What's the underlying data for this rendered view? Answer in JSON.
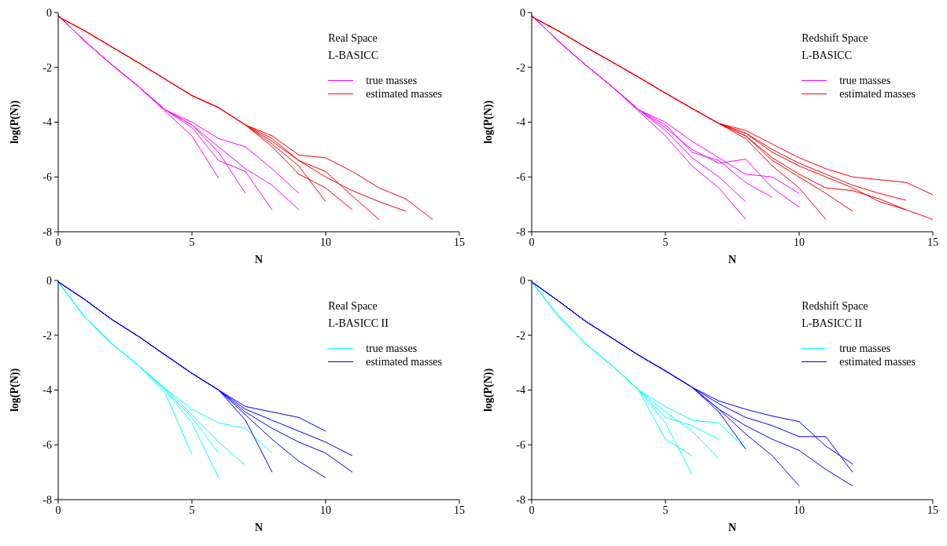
{
  "chart_data": [
    {
      "type": "line",
      "xlabel": "N",
      "ylabel": "log(P(N))",
      "xlim": [
        0,
        15
      ],
      "xticks": [
        0,
        5,
        10,
        15
      ],
      "ylim": [
        -8,
        0
      ],
      "yticks": [
        -8,
        -6,
        -4,
        -2,
        0
      ],
      "legend": "top right",
      "marker": "none",
      "annotations": [
        "Real Space",
        "L-BASICC"
      ],
      "x": [
        0,
        1,
        2,
        3,
        4,
        5,
        6,
        7,
        8,
        9,
        10,
        11,
        12,
        13,
        14
      ],
      "series": [
        {
          "name": "true masses",
          "color": "#ff00ff",
          "values": [
            -0.1,
            -1.05,
            -1.9,
            -2.7,
            -3.55,
            -4.0,
            -4.6,
            -4.9,
            -5.7,
            -6.6,
            null,
            null,
            null,
            null,
            null
          ]
        },
        {
          "color": "#ff00ff",
          "values": [
            -0.1,
            -1.05,
            -1.9,
            -2.7,
            -3.6,
            -4.5,
            -6.05,
            null,
            null,
            null,
            null,
            null,
            null,
            null,
            null
          ]
        },
        {
          "color": "#ff00ff",
          "values": [
            -0.1,
            -1.05,
            -1.9,
            -2.7,
            -3.55,
            -4.1,
            -5.1,
            -6.6,
            null,
            null,
            null,
            null,
            null,
            null,
            null
          ]
        },
        {
          "color": "#ff00ff",
          "values": [
            -0.1,
            -1.05,
            -1.9,
            -2.7,
            -3.55,
            -4.2,
            -5.4,
            -5.8,
            -7.2,
            null,
            null,
            null,
            null,
            null,
            null
          ]
        },
        {
          "color": "#ff00ff",
          "values": [
            -0.1,
            -1.05,
            -1.9,
            -2.7,
            -3.55,
            -4.1,
            -4.9,
            -5.7,
            -6.3,
            -7.2,
            null,
            null,
            null,
            null,
            null
          ]
        },
        {
          "name": "estimated masses",
          "color": "#ff0000",
          "values": [
            -0.15,
            -0.67,
            -1.25,
            -1.83,
            -2.43,
            -3.03,
            -3.47,
            -4.1,
            -4.5,
            -5.2,
            -5.3,
            -5.8,
            -6.4,
            -6.8,
            -7.55
          ]
        },
        {
          "color": "#ff0000",
          "values": [
            -0.15,
            -0.67,
            -1.25,
            -1.83,
            -2.43,
            -3.03,
            -3.47,
            -4.1,
            -4.7,
            -5.4,
            -6.0,
            -6.5,
            -6.9,
            -7.25,
            null
          ]
        },
        {
          "color": "#ff0000",
          "values": [
            -0.15,
            -0.67,
            -1.25,
            -1.83,
            -2.43,
            -3.03,
            -3.47,
            -4.1,
            -4.8,
            -5.6,
            -6.9,
            null,
            null,
            null,
            null
          ]
        },
        {
          "color": "#ff0000",
          "values": [
            -0.15,
            -0.67,
            -1.25,
            -1.83,
            -2.43,
            -3.03,
            -3.47,
            -4.1,
            -4.6,
            -5.4,
            -5.8,
            -6.7,
            -7.55,
            null,
            null
          ]
        },
        {
          "color": "#ff0000",
          "values": [
            -0.15,
            -0.67,
            -1.25,
            -1.83,
            -2.43,
            -3.03,
            -3.47,
            -4.1,
            -4.9,
            -5.9,
            -6.4,
            -7.2,
            null,
            null,
            null
          ]
        }
      ]
    },
    {
      "type": "line",
      "xlabel": "N",
      "ylabel": "log(P(N))",
      "xlim": [
        0,
        15
      ],
      "xticks": [
        0,
        5,
        10,
        15
      ],
      "ylim": [
        -8,
        0
      ],
      "yticks": [
        -8,
        -6,
        -4,
        -2,
        0
      ],
      "legend": "top right",
      "marker": "none",
      "annotations": [
        "Redshift Space",
        "L-BASICC"
      ],
      "x": [
        0,
        1,
        2,
        3,
        4,
        5,
        6,
        7,
        8,
        9,
        10,
        11,
        12,
        13,
        14,
        15
      ],
      "series": [
        {
          "name": "true masses",
          "color": "#ff00ff",
          "values": [
            -0.1,
            -1.05,
            -1.9,
            -2.7,
            -3.55,
            -4.0,
            -4.7,
            -5.3,
            -5.9,
            -6.0,
            -6.6,
            null,
            null,
            null,
            null,
            null
          ]
        },
        {
          "color": "#ff00ff",
          "values": [
            -0.1,
            -1.05,
            -1.9,
            -2.7,
            -3.6,
            -4.5,
            -5.6,
            -6.4,
            -7.55,
            null,
            null,
            null,
            null,
            null,
            null,
            null
          ]
        },
        {
          "color": "#ff00ff",
          "values": [
            -0.1,
            -1.05,
            -1.9,
            -2.7,
            -3.55,
            -4.2,
            -5.0,
            -5.5,
            -5.35,
            -6.4,
            -7.1,
            null,
            null,
            null,
            null,
            null
          ]
        },
        {
          "color": "#ff00ff",
          "values": [
            -0.1,
            -1.05,
            -1.9,
            -2.7,
            -3.55,
            -4.3,
            -5.3,
            -6.0,
            -6.9,
            null,
            null,
            null,
            null,
            null,
            null,
            null
          ]
        },
        {
          "color": "#ff00ff",
          "values": [
            -0.1,
            -1.05,
            -1.9,
            -2.7,
            -3.55,
            -4.1,
            -5.1,
            -5.4,
            -6.2,
            -6.75,
            null,
            null,
            null,
            null,
            null,
            null
          ]
        },
        {
          "name": "estimated masses",
          "color": "#ff0000",
          "values": [
            -0.15,
            -0.67,
            -1.25,
            -1.8,
            -2.36,
            -2.94,
            -3.5,
            -4.05,
            -4.3,
            -4.8,
            -5.3,
            -5.7,
            -6.0,
            -6.1,
            -6.2,
            -6.65
          ]
        },
        {
          "color": "#ff0000",
          "values": [
            -0.15,
            -0.67,
            -1.25,
            -1.8,
            -2.36,
            -2.94,
            -3.5,
            -4.05,
            -4.4,
            -5.0,
            -5.5,
            -5.9,
            -6.3,
            -6.6,
            -6.85,
            null
          ]
        },
        {
          "color": "#ff0000",
          "values": [
            -0.15,
            -0.67,
            -1.25,
            -1.8,
            -2.36,
            -2.94,
            -3.5,
            -4.05,
            -4.5,
            -5.3,
            -5.9,
            -6.4,
            -6.5,
            -6.8,
            -7.2,
            null
          ]
        },
        {
          "color": "#ff0000",
          "values": [
            -0.15,
            -0.67,
            -1.25,
            -1.8,
            -2.36,
            -2.94,
            -3.5,
            -4.05,
            -4.6,
            -5.6,
            -6.4,
            -7.55,
            null,
            null,
            null,
            null
          ]
        },
        {
          "color": "#ff0000",
          "values": [
            -0.15,
            -0.67,
            -1.25,
            -1.8,
            -2.36,
            -2.94,
            -3.5,
            -4.05,
            -4.5,
            -5.4,
            -6.0,
            -6.6,
            -7.25,
            null,
            null,
            null
          ]
        },
        {
          "color": "#ff0000",
          "values": [
            -0.15,
            -0.67,
            -1.25,
            -1.8,
            -2.36,
            -2.94,
            -3.5,
            -4.05,
            -4.4,
            -5.1,
            -5.6,
            -6.0,
            -6.4,
            -6.9,
            -7.2,
            -7.55
          ]
        }
      ]
    },
    {
      "type": "line",
      "xlabel": "N",
      "ylabel": "log(P(N))",
      "xlim": [
        0,
        15
      ],
      "xticks": [
        0,
        5,
        10,
        15
      ],
      "ylim": [
        -8,
        0
      ],
      "yticks": [
        -8,
        -6,
        -4,
        -2,
        0
      ],
      "legend": "top right",
      "marker": "none",
      "annotations": [
        "Real Space",
        "L-BASICC II"
      ],
      "x": [
        0,
        1,
        2,
        3,
        4,
        5,
        6,
        7,
        8,
        9,
        10,
        11
      ],
      "series": [
        {
          "name": "true masses",
          "color": "#00ffff",
          "values": [
            -0.05,
            -1.35,
            -2.3,
            -3.1,
            -3.95,
            -4.7,
            -5.2,
            -5.4,
            -6.3,
            null,
            null,
            null
          ]
        },
        {
          "color": "#00ffff",
          "values": [
            -0.05,
            -1.35,
            -2.3,
            -3.1,
            -4.1,
            -6.35,
            null,
            null,
            null,
            null,
            null,
            null
          ]
        },
        {
          "color": "#00ffff",
          "values": [
            -0.05,
            -1.35,
            -2.3,
            -3.1,
            -3.95,
            -4.9,
            -5.9,
            -6.75,
            null,
            null,
            null,
            null
          ]
        },
        {
          "color": "#00ffff",
          "values": [
            -0.05,
            -1.35,
            -2.3,
            -3.1,
            -4.0,
            -5.2,
            -7.2,
            null,
            null,
            null,
            null,
            null
          ]
        },
        {
          "color": "#00ffff",
          "values": [
            -0.05,
            -1.35,
            -2.3,
            -3.1,
            -4.0,
            -5.0,
            -6.3,
            null,
            null,
            null,
            null,
            null
          ]
        },
        {
          "name": "estimated masses",
          "color": "#0000ff",
          "values": [
            -0.05,
            -0.7,
            -1.42,
            -2.04,
            -2.72,
            -3.39,
            -4.0,
            -4.6,
            -4.8,
            -5.0,
            -5.5,
            null
          ]
        },
        {
          "color": "#0000ff",
          "values": [
            -0.05,
            -0.7,
            -1.42,
            -2.04,
            -2.72,
            -3.39,
            -4.0,
            -4.7,
            -5.1,
            -5.5,
            -5.9,
            -6.4
          ]
        },
        {
          "color": "#0000ff",
          "values": [
            -0.05,
            -0.7,
            -1.42,
            -2.04,
            -2.72,
            -3.39,
            -4.0,
            -4.8,
            -5.4,
            -5.9,
            -6.3,
            -7.0
          ]
        },
        {
          "color": "#0000ff",
          "values": [
            -0.05,
            -0.7,
            -1.42,
            -2.04,
            -2.72,
            -3.39,
            -4.0,
            -5.1,
            -7.0,
            null,
            null,
            null
          ]
        },
        {
          "color": "#0000ff",
          "values": [
            -0.05,
            -0.7,
            -1.42,
            -2.04,
            -2.72,
            -3.39,
            -4.0,
            -4.9,
            -5.8,
            -6.6,
            -7.2,
            null
          ]
        }
      ]
    },
    {
      "type": "line",
      "xlabel": "N",
      "ylabel": "log(P(N))",
      "xlim": [
        0,
        15
      ],
      "xticks": [
        0,
        5,
        10,
        15
      ],
      "ylim": [
        -8,
        0
      ],
      "yticks": [
        -8,
        -6,
        -4,
        -2,
        0
      ],
      "legend": "top right",
      "marker": "none",
      "annotations": [
        "Redshift Space",
        "L-BASICC II"
      ],
      "x": [
        0,
        1,
        2,
        3,
        4,
        5,
        6,
        7,
        8,
        9,
        10,
        11,
        12
      ],
      "series": [
        {
          "name": "true masses",
          "color": "#00ffff",
          "values": [
            -0.05,
            -1.3,
            -2.3,
            -3.1,
            -4.0,
            -4.6,
            -5.1,
            -5.2,
            -6.15,
            null,
            null,
            null,
            null
          ]
        },
        {
          "color": "#00ffff",
          "values": [
            -0.05,
            -1.3,
            -2.3,
            -3.1,
            -4.0,
            -4.8,
            -5.5,
            -6.5,
            null,
            null,
            null,
            null,
            null
          ]
        },
        {
          "color": "#00ffff",
          "values": [
            -0.05,
            -1.3,
            -2.3,
            -3.1,
            -4.0,
            -5.8,
            -6.4,
            null,
            null,
            null,
            null,
            null,
            null
          ]
        },
        {
          "color": "#00ffff",
          "values": [
            -0.05,
            -1.3,
            -2.3,
            -3.1,
            -4.0,
            -5.2,
            -7.1,
            null,
            null,
            null,
            null,
            null,
            null
          ]
        },
        {
          "color": "#00ffff",
          "values": [
            -0.05,
            -1.3,
            -2.3,
            -3.1,
            -4.0,
            -5.0,
            -5.3,
            -5.8,
            null,
            null,
            null,
            null,
            null
          ]
        },
        {
          "name": "estimated masses",
          "color": "#0000ff",
          "values": [
            -0.05,
            -0.75,
            -1.48,
            -2.1,
            -2.73,
            -3.3,
            -3.9,
            -4.4,
            -4.7,
            -4.95,
            -5.15,
            -6.05,
            -6.7
          ]
        },
        {
          "color": "#0000ff",
          "values": [
            -0.05,
            -0.75,
            -1.48,
            -2.1,
            -2.73,
            -3.3,
            -3.9,
            -4.5,
            -5.0,
            -5.3,
            -5.7,
            -5.7,
            -7.0
          ]
        },
        {
          "color": "#0000ff",
          "values": [
            -0.05,
            -0.75,
            -1.48,
            -2.1,
            -2.73,
            -3.3,
            -3.9,
            -4.7,
            -5.3,
            -5.8,
            -6.2,
            -6.9,
            -7.5
          ]
        },
        {
          "color": "#0000ff",
          "values": [
            -0.05,
            -0.75,
            -1.48,
            -2.1,
            -2.73,
            -3.3,
            -3.9,
            -4.8,
            -6.15,
            null,
            null,
            null,
            null
          ]
        },
        {
          "color": "#0000ff",
          "values": [
            -0.05,
            -0.75,
            -1.48,
            -2.1,
            -2.73,
            -3.3,
            -3.9,
            -4.7,
            -5.6,
            -6.4,
            -7.5,
            null,
            null
          ]
        }
      ]
    }
  ]
}
